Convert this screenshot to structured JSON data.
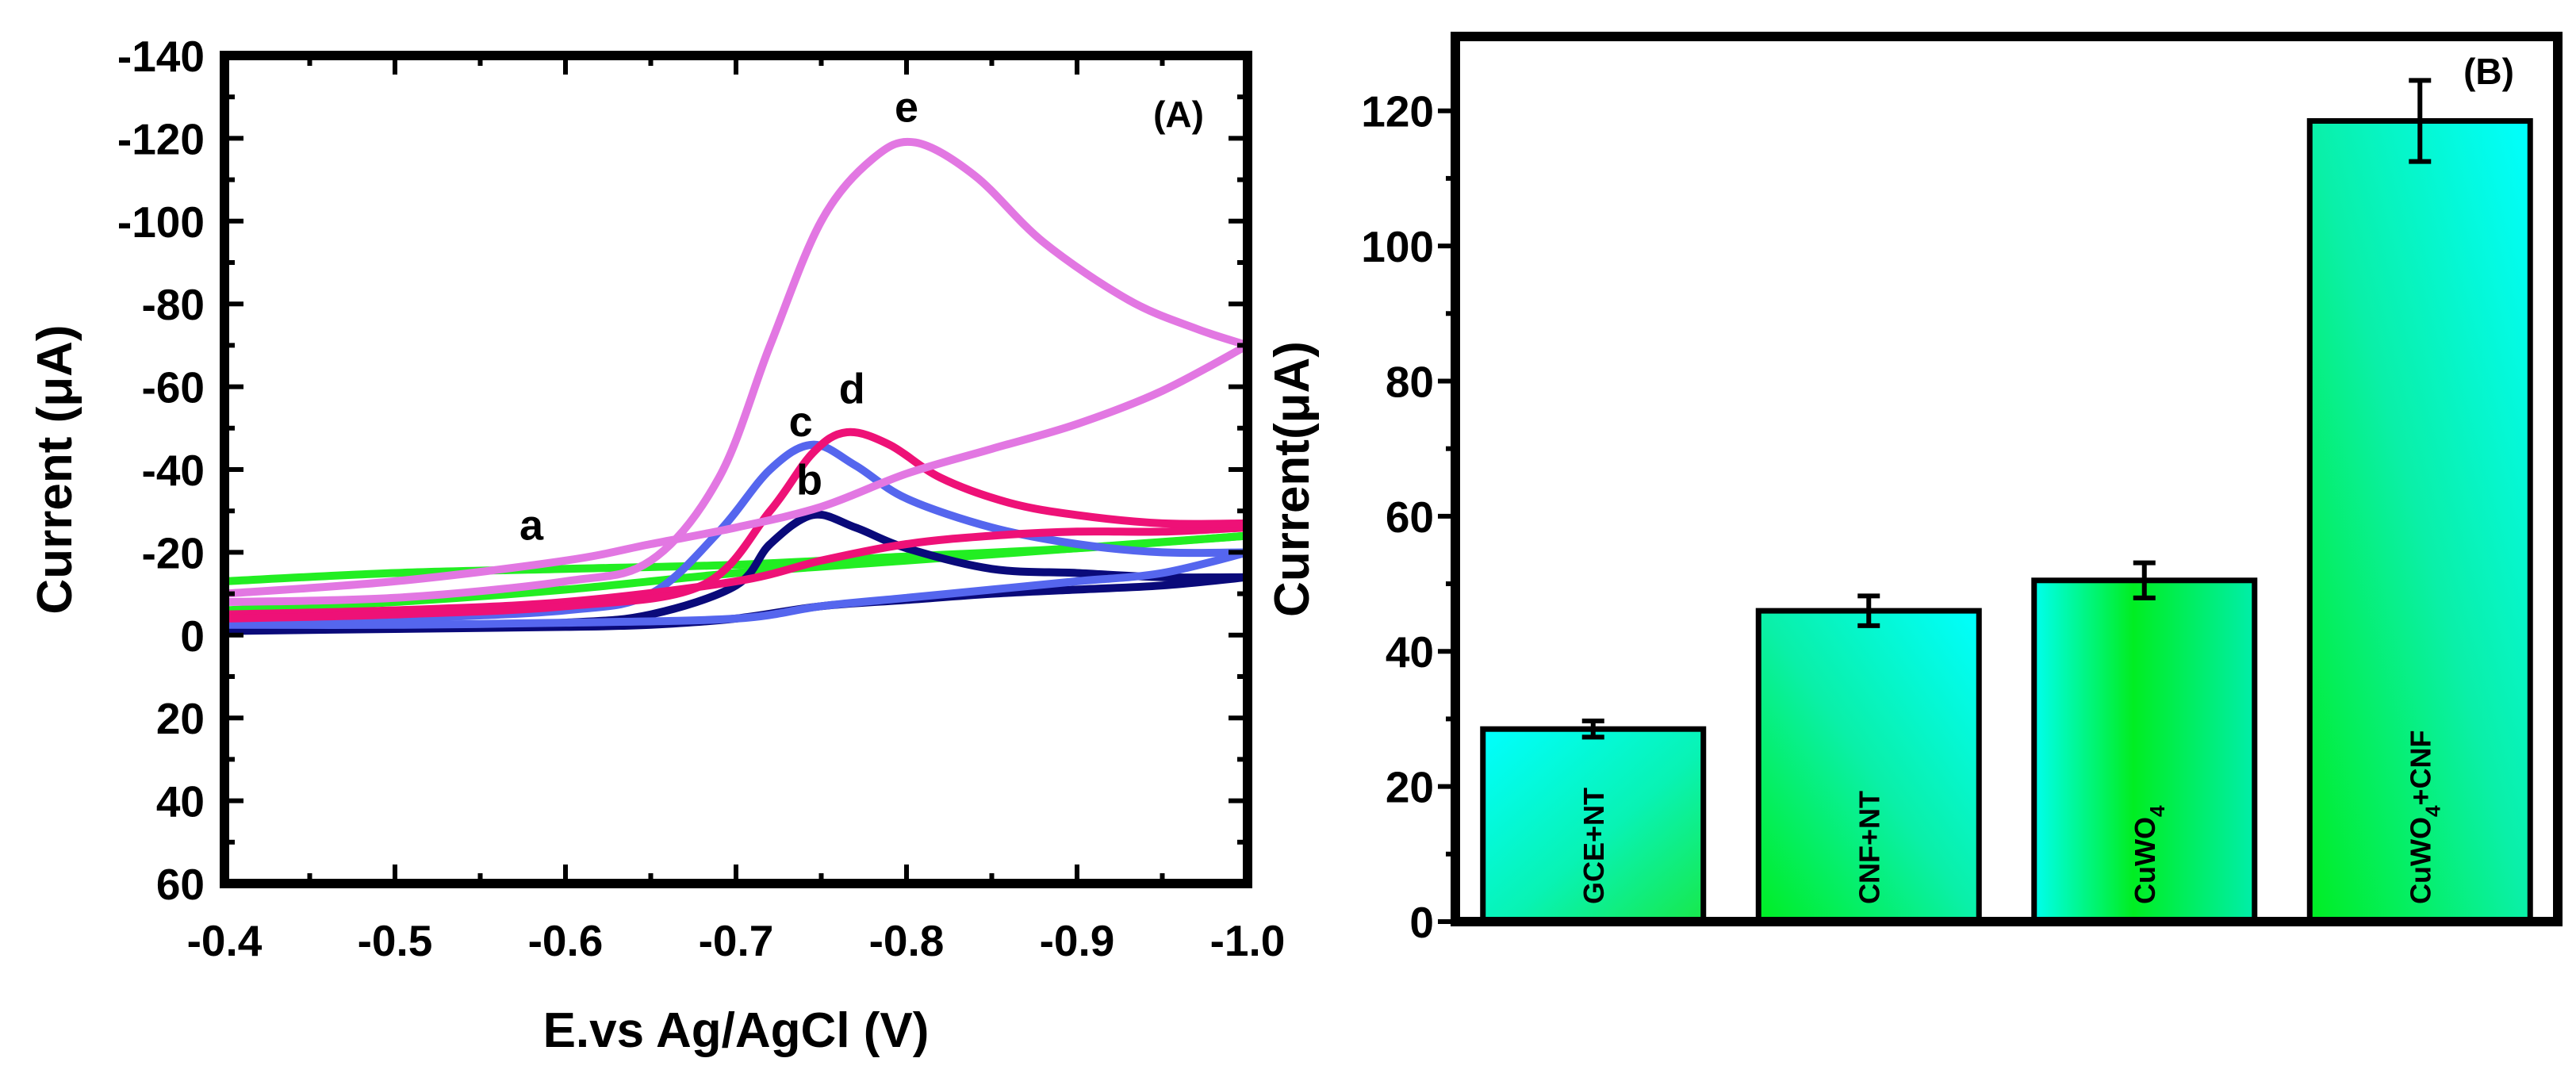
{
  "chart_data": [
    {
      "panel": "(A)",
      "type": "line",
      "xlabel": "E.vs Ag/AgCl (V)",
      "ylabel": "Current (μA)",
      "xlim": [
        -0.4,
        -1.0
      ],
      "ylim": [
        60,
        -140
      ],
      "x_ticks": [
        -0.4,
        -0.5,
        -0.6,
        -0.7,
        -0.8,
        -0.9,
        -1.0
      ],
      "x_tick_labels": [
        "-0.4",
        "-0.5",
        "-0.6",
        "-0.7",
        "-0.8",
        "-0.9",
        "-1.0"
      ],
      "y_ticks": [
        -140,
        -120,
        -100,
        -80,
        -60,
        -40,
        -20,
        0,
        20,
        40,
        60
      ],
      "y_tick_labels": [
        "-140",
        "-120",
        "-100",
        "-80",
        "-60",
        "-40",
        "-20",
        "0",
        "20",
        "40",
        "60"
      ],
      "series": [
        {
          "name": "a",
          "color": "#22ee22",
          "forward": [
            [
              -0.4,
              -13
            ],
            [
              -0.5,
              -15
            ],
            [
              -0.6,
              -16
            ],
            [
              -0.7,
              -17
            ],
            [
              -0.8,
              -19
            ],
            [
              -0.9,
              -21
            ],
            [
              -1.0,
              -24
            ]
          ],
          "reverse": [
            [
              -1.0,
              -24
            ],
            [
              -0.9,
              -21
            ],
            [
              -0.8,
              -18
            ],
            [
              -0.7,
              -15
            ],
            [
              -0.6,
              -11
            ],
            [
              -0.5,
              -8
            ],
            [
              -0.4,
              -6
            ]
          ]
        },
        {
          "name": "b",
          "color": "#0a0a7a",
          "forward": [
            [
              -0.4,
              -2
            ],
            [
              -0.5,
              -2
            ],
            [
              -0.6,
              -3
            ],
            [
              -0.65,
              -5
            ],
            [
              -0.7,
              -12
            ],
            [
              -0.72,
              -22
            ],
            [
              -0.745,
              -29
            ],
            [
              -0.77,
              -26
            ],
            [
              -0.8,
              -21
            ],
            [
              -0.85,
              -16
            ],
            [
              -0.9,
              -15
            ],
            [
              -0.95,
              -14
            ],
            [
              -1.0,
              -14
            ]
          ],
          "reverse": [
            [
              -1.0,
              -14
            ],
            [
              -0.95,
              -12
            ],
            [
              -0.9,
              -11
            ],
            [
              -0.85,
              -10
            ],
            [
              -0.8,
              -8.5
            ],
            [
              -0.75,
              -7
            ],
            [
              -0.7,
              -4
            ],
            [
              -0.65,
              -2.5
            ],
            [
              -0.6,
              -2
            ],
            [
              -0.5,
              -1.5
            ],
            [
              -0.4,
              -1
            ]
          ]
        },
        {
          "name": "c",
          "color": "#5566ee",
          "forward": [
            [
              -0.4,
              -3
            ],
            [
              -0.5,
              -4
            ],
            [
              -0.6,
              -6
            ],
            [
              -0.65,
              -10
            ],
            [
              -0.69,
              -25
            ],
            [
              -0.72,
              -40
            ],
            [
              -0.745,
              -46
            ],
            [
              -0.77,
              -41
            ],
            [
              -0.8,
              -33
            ],
            [
              -0.85,
              -26
            ],
            [
              -0.9,
              -22
            ],
            [
              -0.95,
              -20
            ],
            [
              -1.0,
              -20
            ]
          ],
          "reverse": [
            [
              -1.0,
              -20
            ],
            [
              -0.95,
              -15
            ],
            [
              -0.9,
              -13
            ],
            [
              -0.85,
              -11
            ],
            [
              -0.8,
              -9
            ],
            [
              -0.75,
              -7
            ],
            [
              -0.7,
              -4
            ],
            [
              -0.6,
              -3
            ],
            [
              -0.5,
              -2.5
            ],
            [
              -0.4,
              -2.5
            ]
          ]
        },
        {
          "name": "d",
          "color": "#ee1177",
          "forward": [
            [
              -0.4,
              -4
            ],
            [
              -0.5,
              -5
            ],
            [
              -0.6,
              -7
            ],
            [
              -0.68,
              -12
            ],
            [
              -0.72,
              -30
            ],
            [
              -0.745,
              -44
            ],
            [
              -0.765,
              -49
            ],
            [
              -0.79,
              -46
            ],
            [
              -0.82,
              -38
            ],
            [
              -0.86,
              -32
            ],
            [
              -0.9,
              -29
            ],
            [
              -0.95,
              -27
            ],
            [
              -1.0,
              -27
            ]
          ],
          "reverse": [
            [
              -1.0,
              -26
            ],
            [
              -0.95,
              -25
            ],
            [
              -0.9,
              -25
            ],
            [
              -0.85,
              -24
            ],
            [
              -0.8,
              -22
            ],
            [
              -0.75,
              -18
            ],
            [
              -0.7,
              -13
            ],
            [
              -0.6,
              -8
            ],
            [
              -0.5,
              -6
            ],
            [
              -0.4,
              -5
            ]
          ]
        },
        {
          "name": "e",
          "color": "#e277e2",
          "forward": [
            [
              -0.4,
              -8
            ],
            [
              -0.5,
              -9
            ],
            [
              -0.6,
              -13
            ],
            [
              -0.65,
              -18
            ],
            [
              -0.69,
              -38
            ],
            [
              -0.72,
              -70
            ],
            [
              -0.75,
              -100
            ],
            [
              -0.78,
              -115
            ],
            [
              -0.805,
              -119
            ],
            [
              -0.84,
              -111
            ],
            [
              -0.88,
              -95
            ],
            [
              -0.93,
              -81
            ],
            [
              -0.97,
              -74
            ],
            [
              -1.0,
              -70
            ]
          ],
          "reverse": [
            [
              -1.0,
              -70
            ],
            [
              -0.95,
              -59
            ],
            [
              -0.9,
              -51
            ],
            [
              -0.85,
              -45
            ],
            [
              -0.8,
              -39
            ],
            [
              -0.75,
              -31
            ],
            [
              -0.7,
              -26
            ],
            [
              -0.65,
              -22
            ],
            [
              -0.6,
              -18
            ],
            [
              -0.5,
              -13
            ],
            [
              -0.4,
              -10
            ]
          ]
        }
      ],
      "curve_labels": [
        {
          "text": "a",
          "x": -0.58,
          "y": -23
        },
        {
          "text": "b",
          "x": -0.743,
          "y": -34
        },
        {
          "text": "c",
          "x": -0.738,
          "y": -48
        },
        {
          "text": "d",
          "x": -0.768,
          "y": -56
        },
        {
          "text": "e",
          "x": -0.8,
          "y": -124
        }
      ]
    },
    {
      "panel": "(B)",
      "type": "bar",
      "ylabel": "Current(μA)",
      "ylim": [
        0,
        131
      ],
      "y_ticks": [
        0,
        20,
        40,
        60,
        80,
        100,
        120
      ],
      "y_tick_labels": [
        "0",
        "20",
        "40",
        "60",
        "80",
        "100",
        "120"
      ],
      "categories": [
        "GCE+NT",
        "CNF+NT",
        "CuWO4",
        "CuWO4+CNF"
      ],
      "category_labels": [
        {
          "main": "GCE+NT",
          "sub": "",
          "tail": ""
        },
        {
          "main": "CNF+NT",
          "sub": "",
          "tail": ""
        },
        {
          "main": "CuWO",
          "sub": "4",
          "tail": ""
        },
        {
          "main": "CuWO",
          "sub": "4",
          "tail": "+CNF"
        }
      ],
      "values": [
        28.5,
        46,
        50.5,
        118.5
      ],
      "errors": [
        1.2,
        2.2,
        2.6,
        6
      ]
    }
  ]
}
